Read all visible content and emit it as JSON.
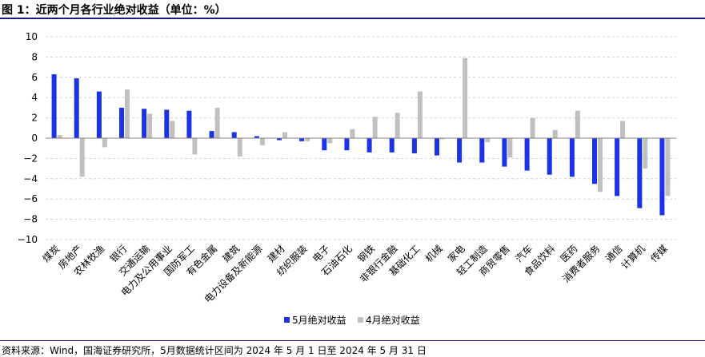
{
  "title": "图 1：近两个月各行业绝对收益（单位：%）",
  "source": "资料来源：Wind，国海证券研究所，5月数据统计区间为 2024 年 5 月 1 日至 2024 年 5 月 31 日",
  "colors": {
    "series1": "#1a33e6",
    "series2": "#c0c0c0",
    "accent": "#1a1a80"
  },
  "chart_data": {
    "type": "bar",
    "title": "",
    "xlabel": "",
    "ylabel": "",
    "ylim": [
      -10,
      10
    ],
    "yticks": [
      -10,
      -8,
      -6,
      -4,
      -2,
      0,
      2,
      4,
      6,
      8,
      10
    ],
    "grid": true,
    "legend": "bottom-center",
    "categories": [
      "煤炭",
      "房地产",
      "农林牧渔",
      "银行",
      "交通运输",
      "电力及公用事业",
      "国防军工",
      "有色金属",
      "建筑",
      "电力设备及新能源",
      "建材",
      "纺织服装",
      "电子",
      "石油石化",
      "钢铁",
      "非银行金融",
      "基础化工",
      "机械",
      "家电",
      "轻工制造",
      "商贸零售",
      "汽车",
      "食品饮料",
      "医药",
      "消费者服务",
      "通信",
      "计算机",
      "传媒"
    ],
    "series": [
      {
        "name": "5月绝对收益",
        "color": "#1a33e6",
        "values": [
          6.3,
          5.9,
          4.6,
          3.0,
          2.9,
          2.8,
          2.7,
          0.7,
          0.6,
          0.2,
          -0.2,
          -0.3,
          -1.2,
          -1.2,
          -1.4,
          -1.4,
          -1.5,
          -1.7,
          -2.4,
          -2.4,
          -2.8,
          -3.2,
          -3.6,
          -3.8,
          -4.5,
          -5.7,
          -6.9,
          -7.6
        ]
      },
      {
        "name": "4月绝对收益",
        "color": "#c0c0c0",
        "values": [
          0.3,
          -3.8,
          -0.9,
          4.8,
          2.4,
          1.7,
          -1.6,
          3.0,
          -1.8,
          -0.7,
          0.6,
          -0.3,
          -0.5,
          0.9,
          2.1,
          2.5,
          4.6,
          -0.1,
          7.9,
          -0.4,
          -1.9,
          2.0,
          0.8,
          2.7,
          -5.3,
          1.7,
          -3.0,
          -5.7
        ]
      }
    ]
  }
}
